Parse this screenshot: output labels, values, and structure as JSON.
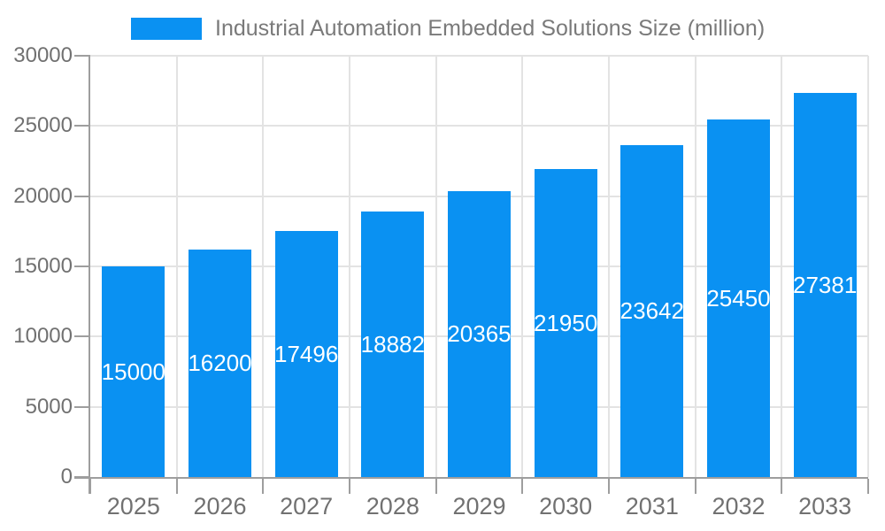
{
  "chart_data": {
    "type": "bar",
    "legend": "Industrial Automation Embedded Solutions Size (million)",
    "categories": [
      "2025",
      "2026",
      "2027",
      "2028",
      "2029",
      "2030",
      "2031",
      "2032",
      "2033"
    ],
    "values": [
      15000,
      16200,
      17496,
      18882,
      20365,
      21950,
      23642,
      25450,
      27381
    ],
    "yticks": [
      0,
      5000,
      10000,
      15000,
      20000,
      25000,
      30000
    ],
    "ylim": [
      0,
      30000
    ],
    "grid": true,
    "legend_position": "top",
    "bar_color": "#0a91f2",
    "bar_label_color": "#ffffff",
    "grid_color": "#e3e3e3",
    "axis_line_color": "#9e9e9e",
    "axis_text_color": "#717171",
    "legend_text_color": "#7a7a7a",
    "background_color": "#ffffff"
  }
}
